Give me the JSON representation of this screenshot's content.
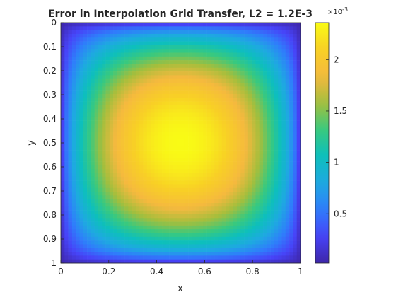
{
  "chart_data": {
    "type": "heatmap",
    "title": "Error in Interpolation Grid Transfer, L2 = 1.2E-3",
    "xlabel": "x",
    "ylabel": "y",
    "xlim": [
      0,
      1
    ],
    "ylim": [
      0,
      1
    ],
    "y_direction": "reversed",
    "x_ticks": [
      "0",
      "0.2",
      "0.4",
      "0.6",
      "0.8",
      "1"
    ],
    "y_ticks": [
      "0",
      "0.1",
      "0.2",
      "0.3",
      "0.4",
      "0.5",
      "0.6",
      "0.7",
      "0.8",
      "0.9",
      "1"
    ],
    "grid_resolution": 64,
    "value_model": "peak * (sin(pi*x) * sin(pi*y))^0.6",
    "peak_value": 0.00236,
    "min_value": 2e-05,
    "colorbar": {
      "range": [
        2e-05,
        0.00236
      ],
      "ticks": [
        "0.5",
        "1",
        "1.5",
        "2"
      ],
      "tick_values": [
        0.0005,
        0.001,
        0.0015,
        0.002
      ],
      "exponent_label": "×10",
      "exponent": "-3"
    },
    "colormap": [
      "#3e26a8",
      "#4743f8",
      "#2f7dfb",
      "#1ea9e1",
      "#0dbfbc",
      "#39c97e",
      "#a5be3c",
      "#f5b93e",
      "#f8d025",
      "#f9fb15"
    ]
  }
}
